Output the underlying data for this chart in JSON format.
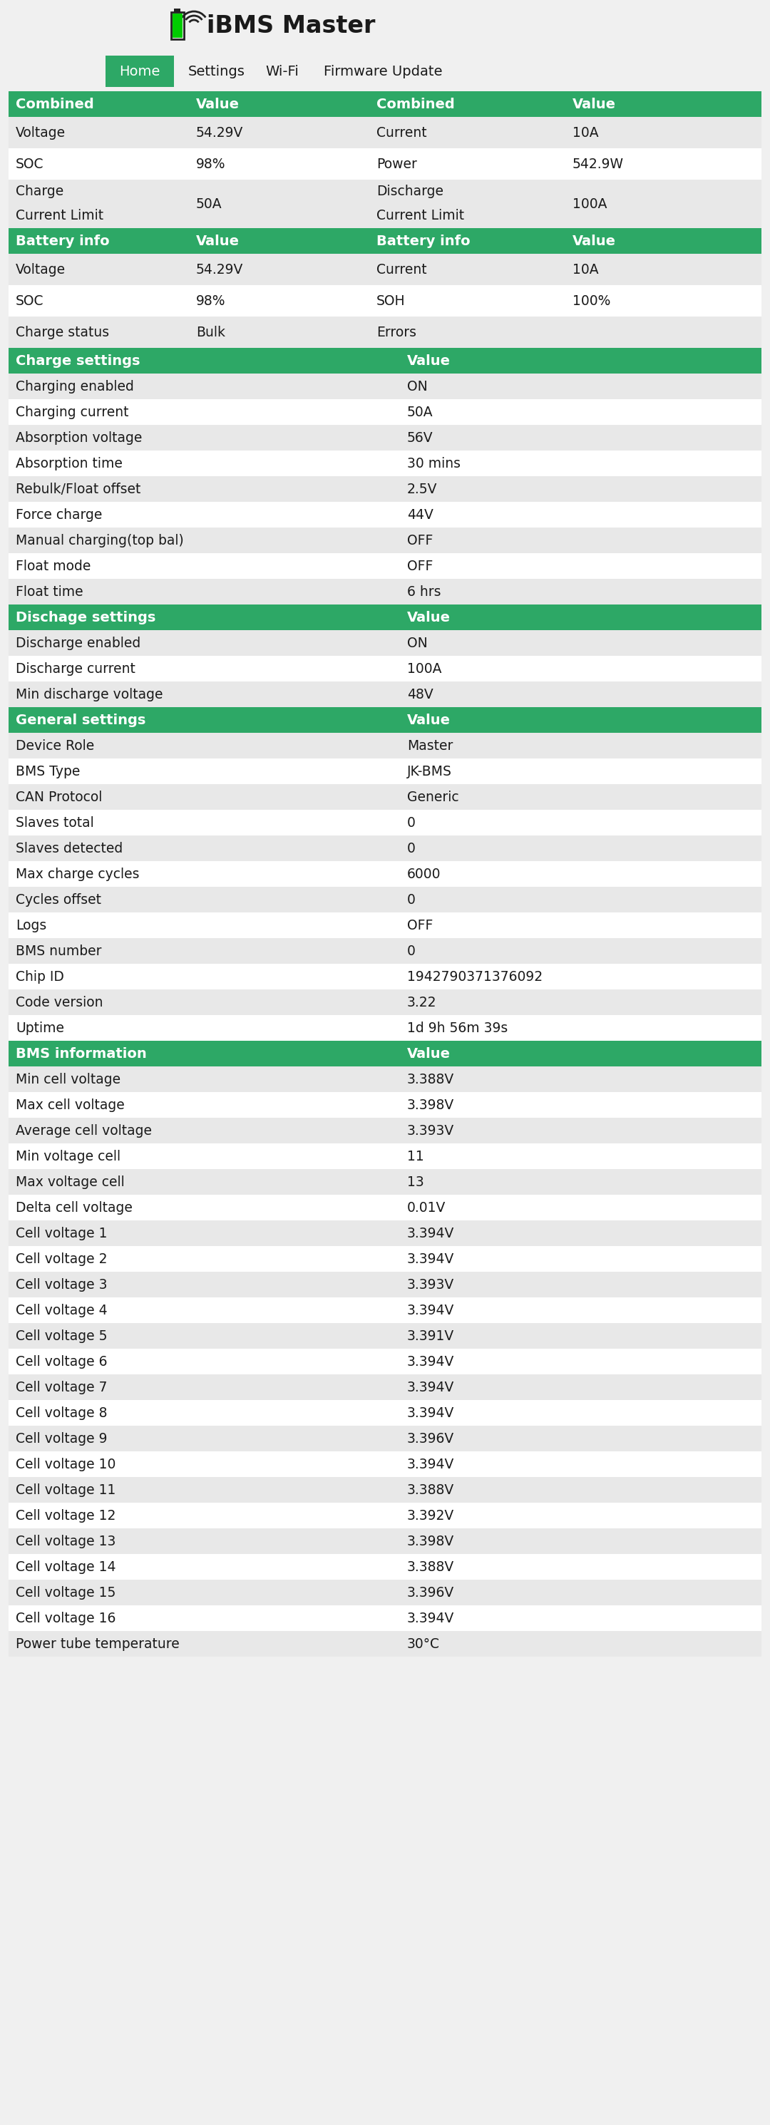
{
  "title": "iBMS Master",
  "bg_color": "#f0f0f0",
  "green": "#2da866",
  "white": "#ffffff",
  "black": "#1a1a1a",
  "row_alt": "#e8e8e8",
  "nav_items": [
    "Home",
    "Settings",
    "Wi-Fi",
    "Firmware Update"
  ],
  "sections": [
    {
      "type": "header4col",
      "cols": [
        "Combined",
        "Value",
        "Combined",
        "Value"
      ],
      "rows": [
        [
          "Voltage",
          "54.29V",
          "Current",
          "10A"
        ],
        [
          "SOC",
          "98%",
          "Power",
          "542.9W"
        ],
        [
          "Charge\nCurrent Limit",
          "50A",
          "Discharge\nCurrent Limit",
          "100A"
        ]
      ]
    },
    {
      "type": "header4col",
      "cols": [
        "Battery info",
        "Value",
        "Battery info",
        "Value"
      ],
      "rows": [
        [
          "Voltage",
          "54.29V",
          "Current",
          "10A"
        ],
        [
          "SOC",
          "98%",
          "SOH",
          "100%"
        ],
        [
          "Charge status",
          "Bulk",
          "Errors",
          ""
        ]
      ]
    },
    {
      "type": "header2col",
      "cols": [
        "Charge settings",
        "Value"
      ],
      "rows": [
        [
          "Charging enabled",
          "ON"
        ],
        [
          "Charging current",
          "50A"
        ],
        [
          "Absorption voltage",
          "56V"
        ],
        [
          "Absorption time",
          "30 mins"
        ],
        [
          "Rebulk/Float offset",
          "2.5V"
        ],
        [
          "Force charge",
          "44V"
        ],
        [
          "Manual charging(top bal)",
          "OFF"
        ],
        [
          "Float mode",
          "OFF"
        ],
        [
          "Float time",
          "6 hrs"
        ]
      ]
    },
    {
      "type": "header2col",
      "cols": [
        "Dischage settings",
        "Value"
      ],
      "rows": [
        [
          "Discharge enabled",
          "ON"
        ],
        [
          "Discharge current",
          "100A"
        ],
        [
          "Min discharge voltage",
          "48V"
        ]
      ]
    },
    {
      "type": "header2col",
      "cols": [
        "General settings",
        "Value"
      ],
      "rows": [
        [
          "Device Role",
          "Master"
        ],
        [
          "BMS Type",
          "JK-BMS"
        ],
        [
          "CAN Protocol",
          "Generic"
        ],
        [
          "Slaves total",
          "0"
        ],
        [
          "Slaves detected",
          "0"
        ],
        [
          "Max charge cycles",
          "6000"
        ],
        [
          "Cycles offset",
          "0"
        ],
        [
          "Logs",
          "OFF"
        ],
        [
          "BMS number",
          "0"
        ],
        [
          "Chip ID",
          "1942790371376092"
        ],
        [
          "Code version",
          "3.22"
        ],
        [
          "Uptime",
          "1d 9h 56m 39s"
        ]
      ]
    },
    {
      "type": "header2col",
      "cols": [
        "BMS information",
        "Value"
      ],
      "rows": [
        [
          "Min cell voltage",
          "3.388V"
        ],
        [
          "Max cell voltage",
          "3.398V"
        ],
        [
          "Average cell voltage",
          "3.393V"
        ],
        [
          "Min voltage cell",
          "11"
        ],
        [
          "Max voltage cell",
          "13"
        ],
        [
          "Delta cell voltage",
          "0.01V"
        ],
        [
          "Cell voltage 1",
          "3.394V"
        ],
        [
          "Cell voltage 2",
          "3.394V"
        ],
        [
          "Cell voltage 3",
          "3.393V"
        ],
        [
          "Cell voltage 4",
          "3.394V"
        ],
        [
          "Cell voltage 5",
          "3.391V"
        ],
        [
          "Cell voltage 6",
          "3.394V"
        ],
        [
          "Cell voltage 7",
          "3.394V"
        ],
        [
          "Cell voltage 8",
          "3.394V"
        ],
        [
          "Cell voltage 9",
          "3.396V"
        ],
        [
          "Cell voltage 10",
          "3.394V"
        ],
        [
          "Cell voltage 11",
          "3.388V"
        ],
        [
          "Cell voltage 12",
          "3.392V"
        ],
        [
          "Cell voltage 13",
          "3.398V"
        ],
        [
          "Cell voltage 14",
          "3.388V"
        ],
        [
          "Cell voltage 15",
          "3.396V"
        ],
        [
          "Cell voltage 16",
          "3.394V"
        ],
        [
          "Power tube temperature",
          "30°C"
        ]
      ]
    }
  ]
}
